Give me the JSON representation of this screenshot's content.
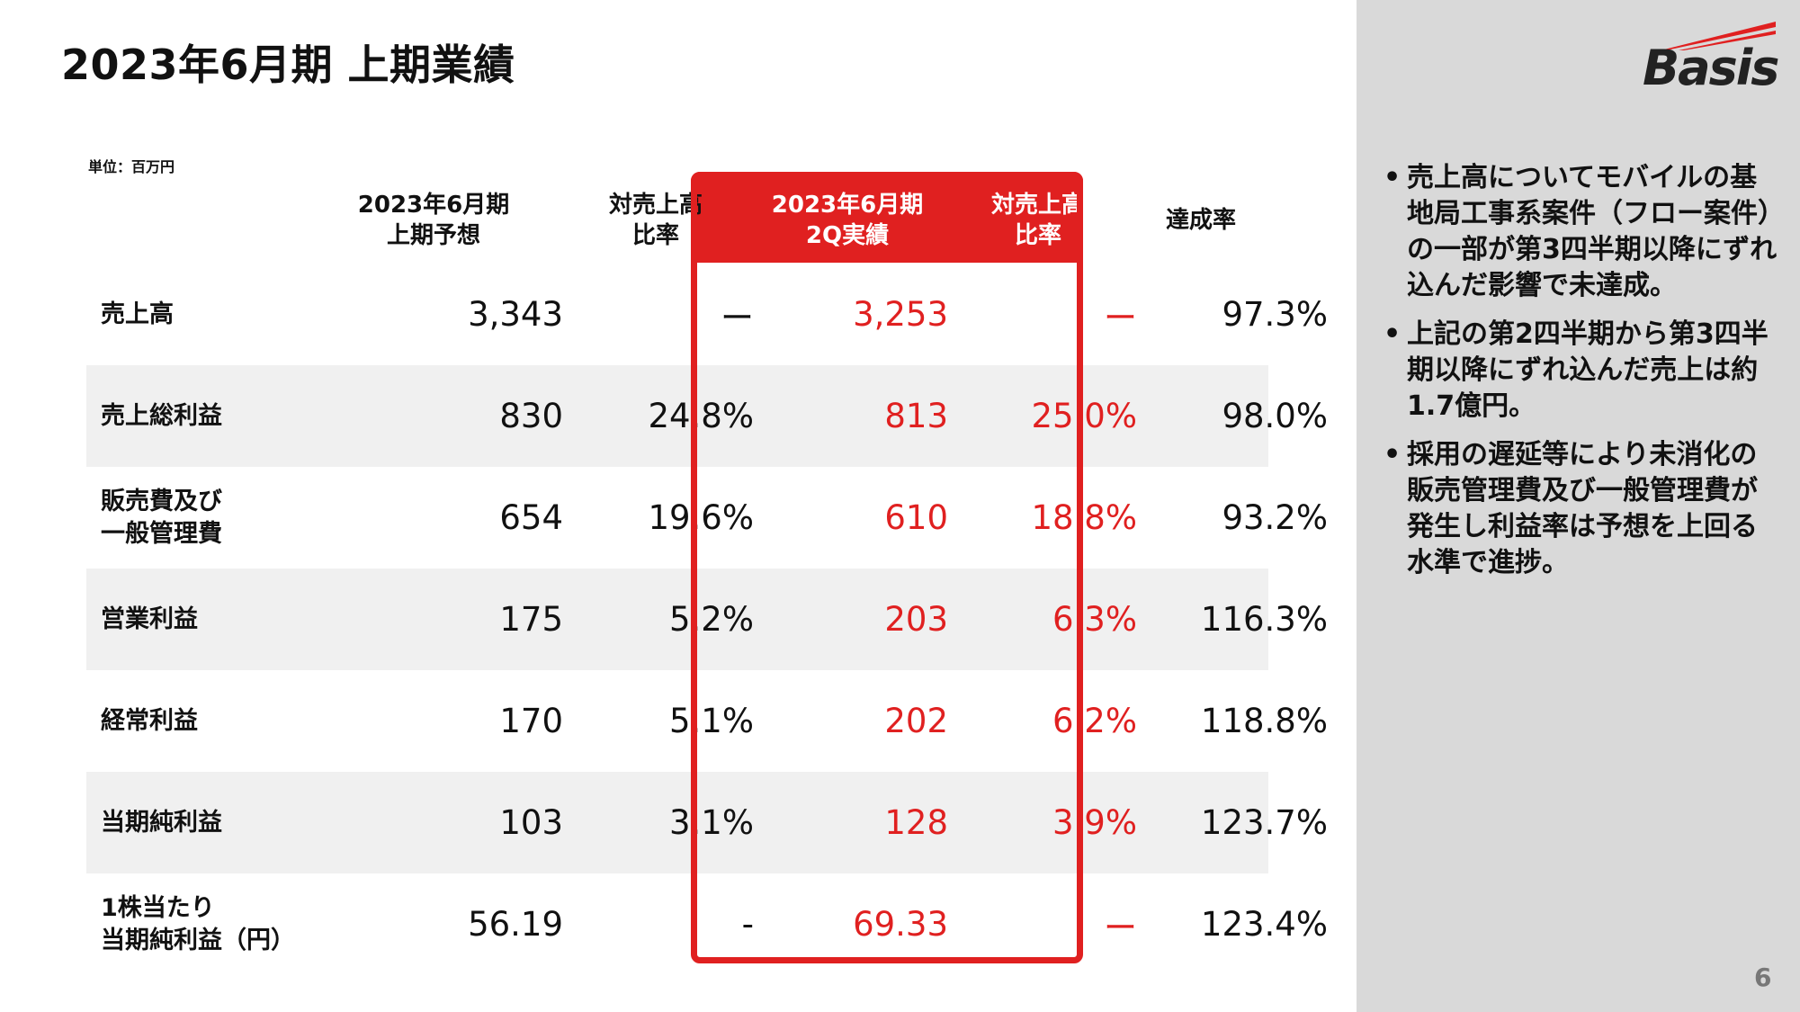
{
  "title": "2023年6月期 上期業績",
  "unit_label": "単位：百万円",
  "table": {
    "headers": [
      "",
      "2023年6月期\n上期予想",
      "対売上高\n比率",
      "2023年6月期\n2Q実績",
      "対売上高\n比率",
      "達成率"
    ],
    "rows": [
      {
        "label": "売上高",
        "forecast": "3,343",
        "forecast_ratio": "ー",
        "actual": "3,253",
        "actual_ratio": "ー",
        "achievement": "97.3%"
      },
      {
        "label": "売上総利益",
        "forecast": "830",
        "forecast_ratio": "24.8%",
        "actual": "813",
        "actual_ratio": "25.0%",
        "achievement": "98.0%"
      },
      {
        "label": "販売費及び\n一般管理費",
        "forecast": "654",
        "forecast_ratio": "19.6%",
        "actual": "610",
        "actual_ratio": "18.8%",
        "achievement": "93.2%"
      },
      {
        "label": "営業利益",
        "forecast": "175",
        "forecast_ratio": "5.2%",
        "actual": "203",
        "actual_ratio": "6.3%",
        "achievement": "116.3%"
      },
      {
        "label": "経常利益",
        "forecast": "170",
        "forecast_ratio": "5.1%",
        "actual": "202",
        "actual_ratio": "6.2%",
        "achievement": "118.8%"
      },
      {
        "label": "当期純利益",
        "forecast": "103",
        "forecast_ratio": "3.1%",
        "actual": "128",
        "actual_ratio": "3.9%",
        "achievement": "123.7%"
      },
      {
        "label": "1株当たり\n当期純利益（円）",
        "forecast": "56.19",
        "forecast_ratio": "-",
        "actual": "69.33",
        "actual_ratio": "ー",
        "achievement": "123.4%"
      }
    ]
  },
  "logo_text": "Basis",
  "bullets": [
    "売上高についてモバイルの基地局工事系案件（フロー案件）の一部が第3四半期以降にずれ込んだ影響で未達成。",
    "上記の第2四半期から第3四半期以降にずれ込んだ売上は約1.7億円。",
    "採用の遅延等により未消化の販売管理費及び一般管理費が発生し利益率は予想を上回る水準で進捗。"
  ],
  "page_number": "6",
  "colors": {
    "accent": "#e02020",
    "sidebar": "#d9d9d9",
    "row_shade": "#f0f0f0"
  }
}
